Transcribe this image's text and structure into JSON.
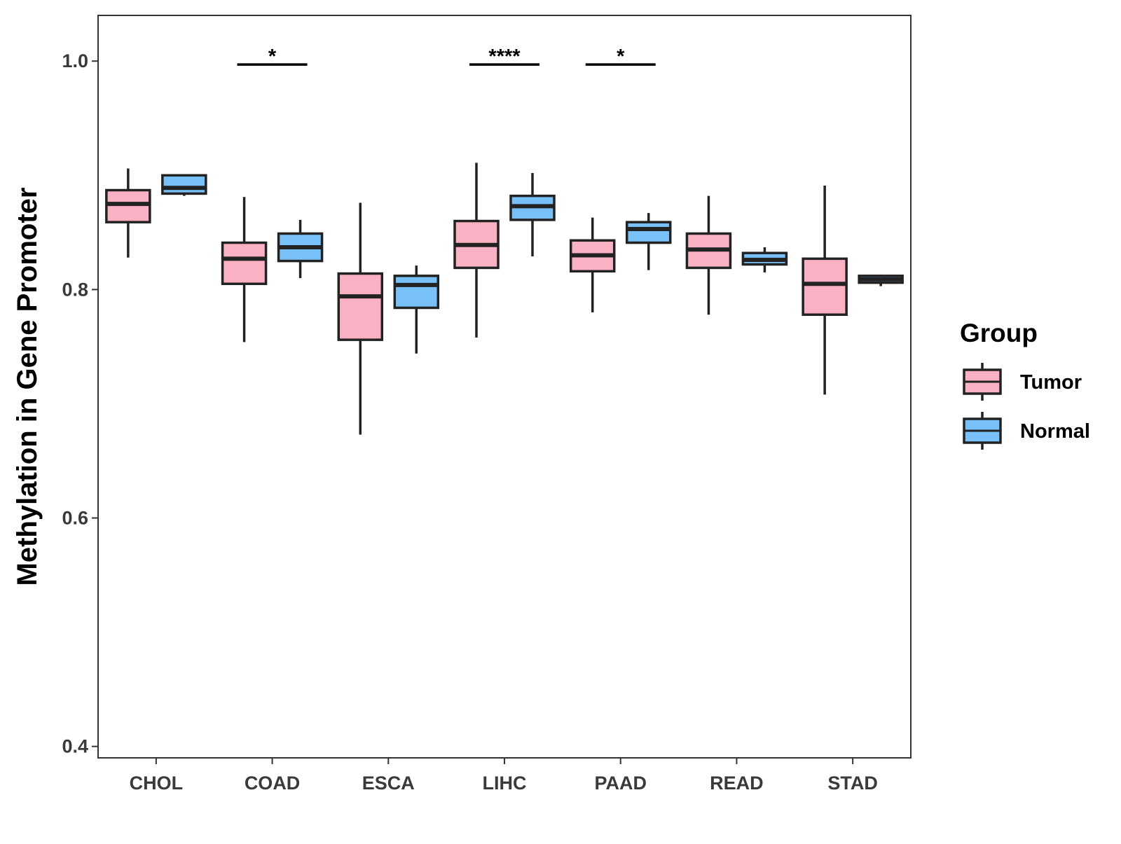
{
  "chart_data": {
    "type": "boxplot",
    "title": "",
    "xlabel": "",
    "ylabel": "Methylation in Gene Promoter",
    "ylim": [
      0.39,
      1.04
    ],
    "yticks": [
      0.4,
      0.6,
      0.8,
      1.0
    ],
    "ytick_labels": [
      "0.4",
      "0.6",
      "0.8",
      "1.0"
    ],
    "categories": [
      "CHOL",
      "COAD",
      "ESCA",
      "LIHC",
      "PAAD",
      "READ",
      "STAD"
    ],
    "legend": {
      "title": "Group",
      "position": "right",
      "entries": [
        "Tumor",
        "Normal"
      ]
    },
    "series": [
      {
        "name": "Tumor",
        "color": "#F9B1C3",
        "boxes": [
          {
            "min": 0.828,
            "q1": 0.859,
            "median": 0.875,
            "q3": 0.887,
            "max": 0.906
          },
          {
            "min": 0.754,
            "q1": 0.805,
            "median": 0.827,
            "q3": 0.841,
            "max": 0.881
          },
          {
            "min": 0.673,
            "q1": 0.756,
            "median": 0.794,
            "q3": 0.814,
            "max": 0.876
          },
          {
            "min": 0.758,
            "q1": 0.819,
            "median": 0.839,
            "q3": 0.86,
            "max": 0.911
          },
          {
            "min": 0.78,
            "q1": 0.816,
            "median": 0.83,
            "q3": 0.843,
            "max": 0.863
          },
          {
            "min": 0.778,
            "q1": 0.819,
            "median": 0.835,
            "q3": 0.849,
            "max": 0.882
          },
          {
            "min": 0.708,
            "q1": 0.778,
            "median": 0.805,
            "q3": 0.827,
            "max": 0.891
          }
        ]
      },
      {
        "name": "Normal",
        "color": "#78C1F8",
        "boxes": [
          {
            "min": 0.882,
            "q1": 0.884,
            "median": 0.889,
            "q3": 0.9,
            "max": 0.901
          },
          {
            "min": 0.81,
            "q1": 0.825,
            "median": 0.837,
            "q3": 0.849,
            "max": 0.861
          },
          {
            "min": 0.744,
            "q1": 0.784,
            "median": 0.804,
            "q3": 0.812,
            "max": 0.821
          },
          {
            "min": 0.829,
            "q1": 0.861,
            "median": 0.873,
            "q3": 0.882,
            "max": 0.902
          },
          {
            "min": 0.817,
            "q1": 0.841,
            "median": 0.853,
            "q3": 0.859,
            "max": 0.867
          },
          {
            "min": 0.815,
            "q1": 0.822,
            "median": 0.826,
            "q3": 0.832,
            "max": 0.837
          },
          {
            "min": 0.803,
            "q1": 0.806,
            "median": 0.809,
            "q3": 0.812,
            "max": 0.813
          }
        ]
      }
    ],
    "annotations": [
      {
        "category": "COAD",
        "label": "*",
        "y": 0.997
      },
      {
        "category": "LIHC",
        "label": "****",
        "y": 0.997
      },
      {
        "category": "PAAD",
        "label": "*",
        "y": 0.997
      }
    ]
  }
}
